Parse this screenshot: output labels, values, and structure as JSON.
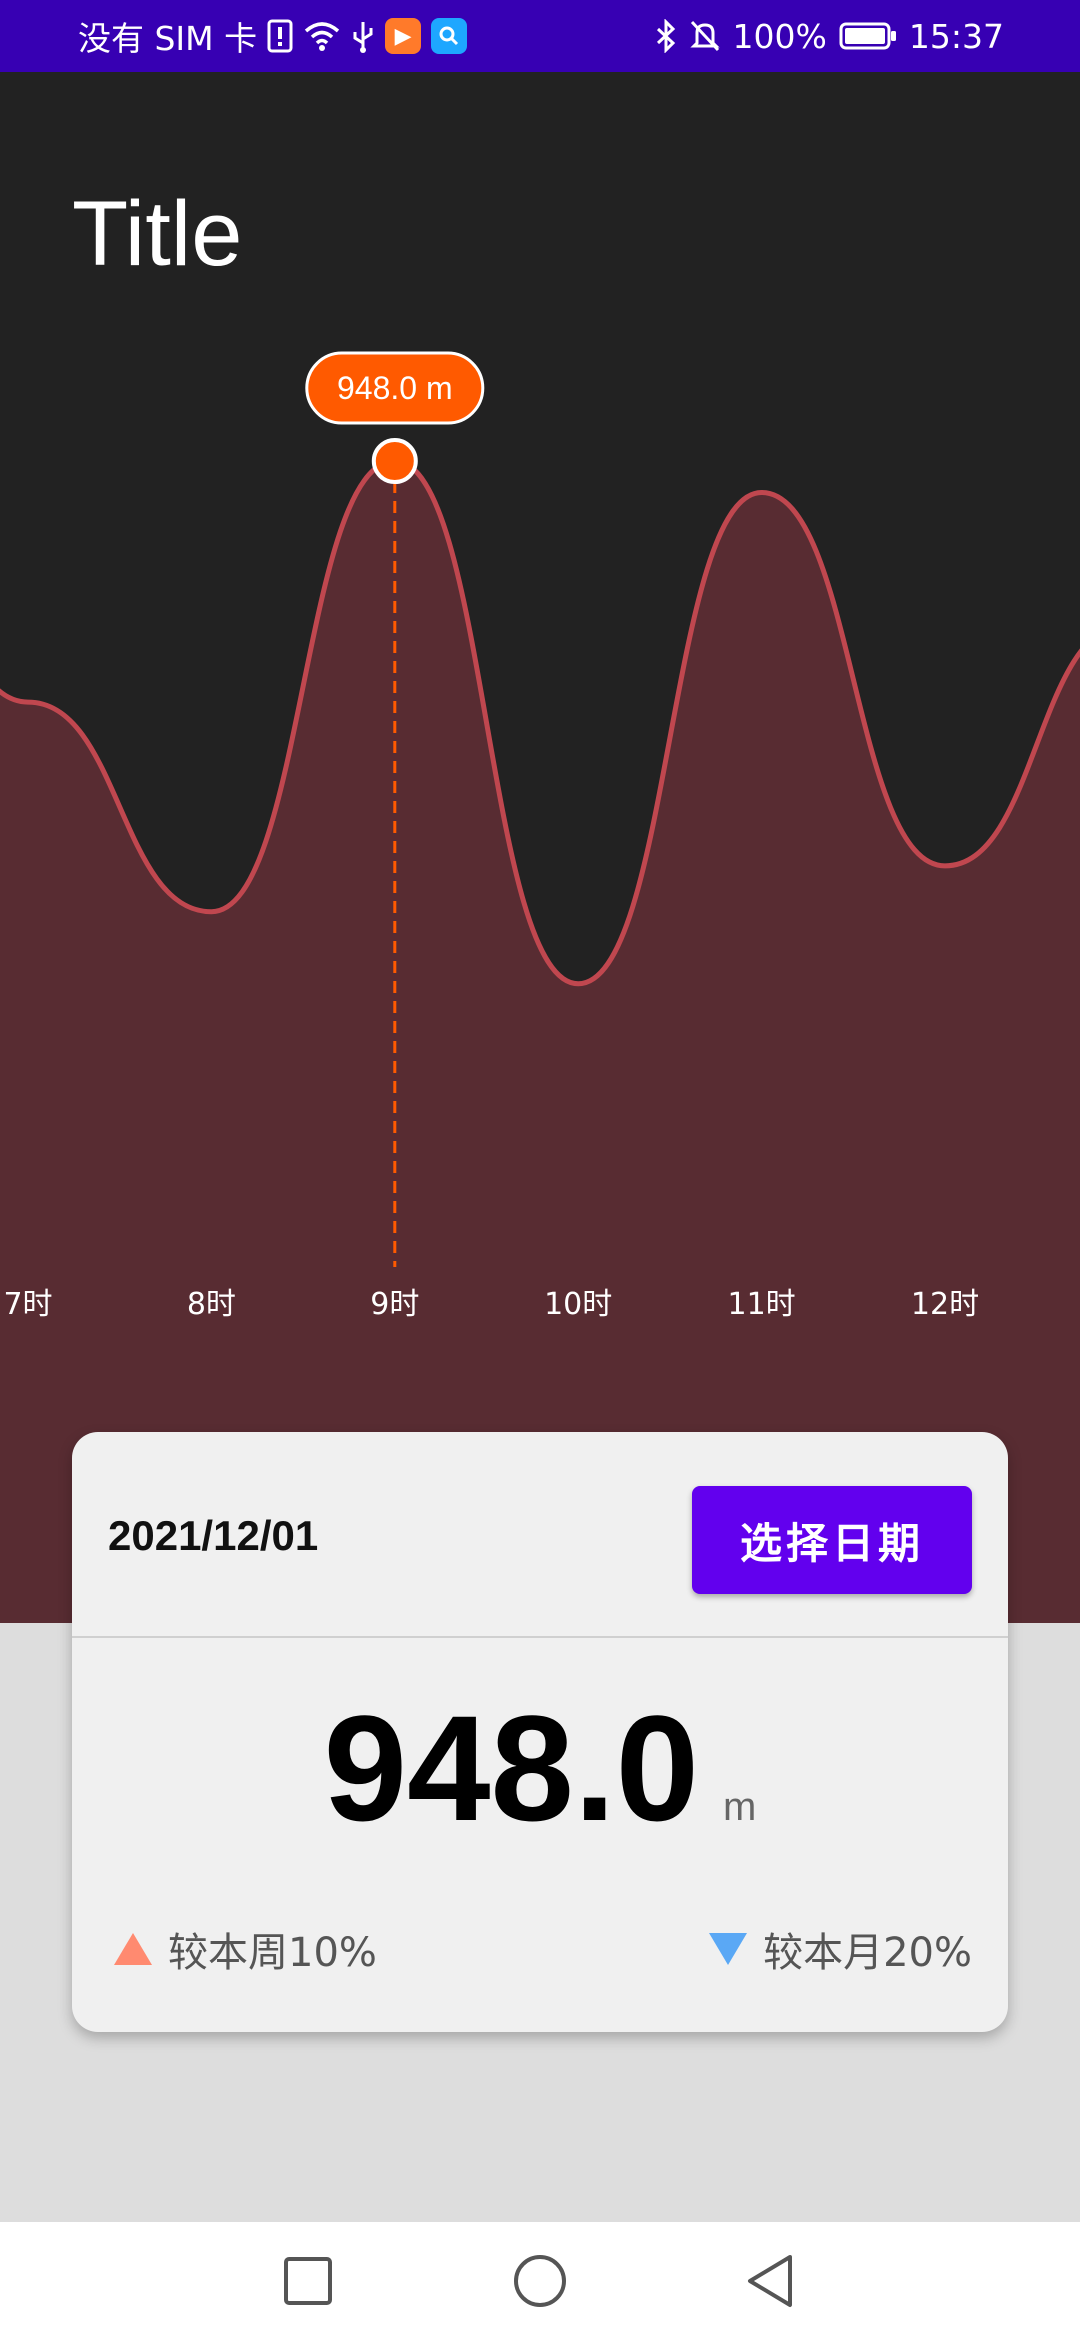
{
  "status_bar": {
    "carrier": "没有 SIM 卡",
    "battery": "100%",
    "time": "15:37",
    "icons_left": [
      "sim-alert-icon",
      "wifi-icon",
      "usb-icon",
      "video-app-icon",
      "search-app-icon"
    ],
    "icons_right": [
      "bluetooth-icon",
      "mute-icon",
      "battery-icon"
    ]
  },
  "header": {
    "title": "Title"
  },
  "chart": {
    "tooltip": "948.0 m",
    "selected_label": "9时"
  },
  "chart_data": {
    "type": "area",
    "x": [
      "7时",
      "8时",
      "9时",
      "10时",
      "11时",
      "12时"
    ],
    "series": [
      {
        "values": [
          580,
          260,
          948,
          150,
          900,
          330
        ]
      }
    ],
    "line_color": "#c0474f",
    "fill_color": "#582c32",
    "highlight_color": "#ff5a00",
    "selected_index": 2
  },
  "card": {
    "date": "2021/12/01",
    "select_date_label": "选择日期",
    "value": "948.0",
    "unit": "m",
    "week_compare": "较本周10%",
    "month_compare": "较本月20%",
    "colors": {
      "up": "#ff8a70",
      "down": "#5aa8f5",
      "button": "#6200ee"
    }
  },
  "nav_bar": {
    "buttons": [
      "recents-square-icon",
      "home-circle-icon",
      "back-triangle-icon"
    ]
  }
}
